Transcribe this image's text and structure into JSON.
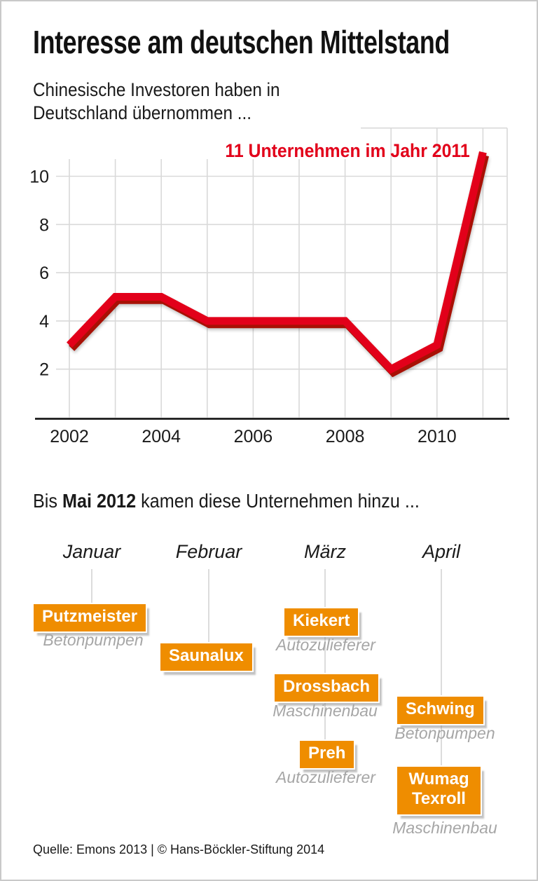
{
  "page": {
    "title": "Interesse am deutschen Mittelstand",
    "subtitle": [
      "Chinesische Investoren haben in",
      "Deutschland übernommen ..."
    ],
    "intro_2012": {
      "prefix": "Bis ",
      "bold": "Mai 2012",
      "suffix": " kamen diese Unternehmen hinzu ..."
    },
    "source": "Quelle: Emons 2013 | © Hans-Böckler-Stiftung 2014"
  },
  "chart_data": {
    "type": "line",
    "x": [
      2002,
      2003,
      2004,
      2005,
      2006,
      2007,
      2008,
      2009,
      2010,
      2011
    ],
    "values": [
      3,
      5,
      5,
      4,
      4,
      4,
      4,
      2,
      3,
      11
    ],
    "annotation": "11 Unternehmen im Jahr 2011",
    "x_tick_labels": [
      "2002",
      "2004",
      "2006",
      "2008",
      "2010"
    ],
    "y_tick_labels": [
      "2",
      "4",
      "6",
      "8",
      "10"
    ],
    "xlim": [
      2001.5,
      2011.5
    ],
    "ylim": [
      0,
      12
    ],
    "grid": true,
    "legend": "none",
    "line_color": "#e2001a",
    "line_shadow_color": "#a81005"
  },
  "timeline": {
    "months": [
      "Januar",
      "Februar",
      "März",
      "April"
    ],
    "entries": [
      {
        "month": "Januar",
        "company": "Putzmeister",
        "industry": "Betonpumpen"
      },
      {
        "month": "Februar",
        "company": "Saunalux",
        "industry": ""
      },
      {
        "month": "März",
        "company": "Kiekert",
        "industry": "Autozulieferer"
      },
      {
        "month": "März",
        "company": "Drossbach",
        "industry": "Maschinenbau"
      },
      {
        "month": "März",
        "company": "Preh",
        "industry": "Autozulieferer"
      },
      {
        "month": "April",
        "company": "Schwing",
        "industry": "Betonpumpen"
      },
      {
        "month": "April",
        "company": "Wumag Texroll",
        "industry": "Maschinenbau"
      }
    ]
  },
  "colors": {
    "red": "#e2001a",
    "orange": "#ef8d00",
    "grid_gray": "#d9d9d9",
    "caption_gray": "#a6a6a6"
  }
}
